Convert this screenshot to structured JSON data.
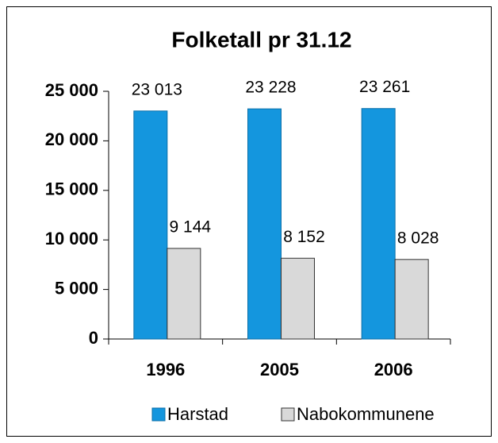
{
  "chart_data": {
    "type": "bar",
    "title": "Folketall pr 31.12",
    "categories": [
      "1996",
      "2005",
      "2006"
    ],
    "series": [
      {
        "name": "Harstad",
        "color": "#1496de",
        "values": [
          23013,
          23228,
          23261
        ],
        "value_labels": [
          "23 013",
          "23 228",
          "23 261"
        ]
      },
      {
        "name": "Nabokommunene",
        "color": "#d9d9d9",
        "values": [
          9144,
          8152,
          8028
        ],
        "value_labels": [
          "9 144",
          "8 152",
          "8 028"
        ]
      }
    ],
    "ylim": [
      0,
      25000
    ],
    "yticks": [
      0,
      {
        "value": 5000,
        "label": "5 000"
      },
      {
        "value": 10000,
        "label": "10 000"
      },
      {
        "value": 15000,
        "label": "15 000"
      },
      {
        "value": 20000,
        "label": "20 000"
      },
      {
        "value": 25000,
        "label": "25 000"
      }
    ],
    "legend": "bottom"
  }
}
